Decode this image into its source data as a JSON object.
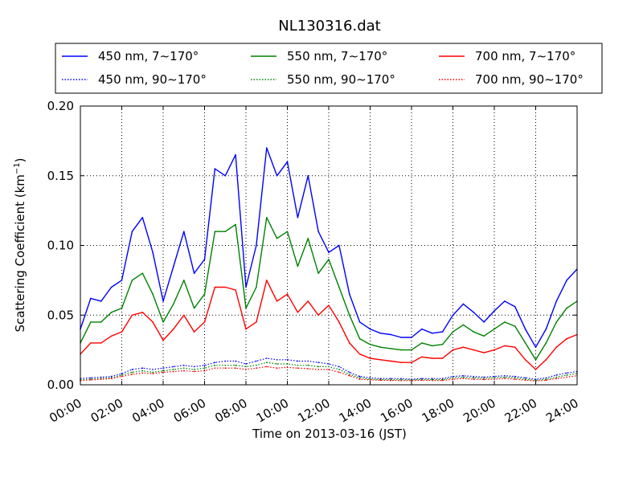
{
  "chart_data": {
    "type": "line",
    "title": "NL130316.dat",
    "xlabel": "Time on 2013-03-16 (JST)",
    "ylabel": "Scattering Coefficient (km",
    "ylabel_sup": "−1",
    "ylabel_end": ")",
    "xlim": [
      "00:00",
      "24:00"
    ],
    "ylim": [
      0.0,
      0.2
    ],
    "grid": true,
    "legend_position": "top",
    "x_tick_labels": [
      "00:00",
      "02:00",
      "04:00",
      "06:00",
      "08:00",
      "10:00",
      "12:00",
      "14:00",
      "16:00",
      "18:00",
      "20:00",
      "22:00",
      "24:00"
    ],
    "y_tick_labels": [
      "0.00",
      "0.05",
      "0.10",
      "0.15",
      "0.20"
    ],
    "x_hours": [
      0,
      0.5,
      1,
      1.5,
      2,
      2.5,
      3,
      3.5,
      4,
      4.5,
      5,
      5.5,
      6,
      6.5,
      7,
      7.5,
      8,
      8.5,
      9,
      9.5,
      10,
      10.5,
      11,
      11.5,
      12,
      12.5,
      13,
      13.5,
      14,
      14.5,
      15,
      15.5,
      16,
      16.5,
      17,
      17.5,
      18,
      18.5,
      19,
      19.5,
      20,
      20.5,
      21,
      21.5,
      22,
      22.5,
      23,
      23.5,
      24
    ],
    "series": [
      {
        "name": "450 nm, 7∼170°",
        "color": "#0000ff",
        "style": "solid",
        "values": [
          0.04,
          0.062,
          0.06,
          0.07,
          0.075,
          0.11,
          0.12,
          0.095,
          0.06,
          0.085,
          0.11,
          0.08,
          0.09,
          0.155,
          0.15,
          0.165,
          0.07,
          0.1,
          0.17,
          0.15,
          0.16,
          0.12,
          0.15,
          0.11,
          0.095,
          0.1,
          0.065,
          0.045,
          0.04,
          0.037,
          0.036,
          0.034,
          0.034,
          0.04,
          0.037,
          0.038,
          0.05,
          0.058,
          0.052,
          0.045,
          0.053,
          0.06,
          0.056,
          0.04,
          0.027,
          0.04,
          0.06,
          0.075,
          0.083
        ]
      },
      {
        "name": "450 nm, 90∼170°",
        "color": "#0000ff",
        "style": "dotted",
        "values": [
          0.0045,
          0.005,
          0.0055,
          0.006,
          0.008,
          0.011,
          0.012,
          0.011,
          0.012,
          0.013,
          0.014,
          0.013,
          0.014,
          0.016,
          0.017,
          0.017,
          0.015,
          0.017,
          0.019,
          0.018,
          0.018,
          0.017,
          0.017,
          0.016,
          0.015,
          0.013,
          0.009,
          0.006,
          0.005,
          0.0045,
          0.0045,
          0.0045,
          0.004,
          0.0045,
          0.0045,
          0.0045,
          0.006,
          0.0065,
          0.006,
          0.0055,
          0.006,
          0.0065,
          0.006,
          0.005,
          0.004,
          0.005,
          0.007,
          0.0085,
          0.0095
        ]
      },
      {
        "name": "550 nm, 7∼170°",
        "color": "#008000",
        "style": "solid",
        "values": [
          0.03,
          0.045,
          0.045,
          0.052,
          0.055,
          0.075,
          0.08,
          0.065,
          0.045,
          0.058,
          0.075,
          0.055,
          0.065,
          0.11,
          0.11,
          0.115,
          0.055,
          0.07,
          0.12,
          0.105,
          0.11,
          0.085,
          0.105,
          0.08,
          0.09,
          0.07,
          0.05,
          0.033,
          0.029,
          0.027,
          0.026,
          0.025,
          0.025,
          0.03,
          0.028,
          0.029,
          0.038,
          0.043,
          0.038,
          0.035,
          0.04,
          0.045,
          0.042,
          0.03,
          0.018,
          0.03,
          0.045,
          0.055,
          0.06
        ]
      },
      {
        "name": "550 nm, 90∼170°",
        "color": "#008000",
        "style": "dotted",
        "values": [
          0.0035,
          0.004,
          0.0045,
          0.005,
          0.007,
          0.009,
          0.01,
          0.009,
          0.01,
          0.011,
          0.012,
          0.011,
          0.012,
          0.014,
          0.014,
          0.014,
          0.013,
          0.014,
          0.016,
          0.015,
          0.015,
          0.014,
          0.014,
          0.013,
          0.013,
          0.011,
          0.0075,
          0.005,
          0.004,
          0.0038,
          0.0037,
          0.0036,
          0.0035,
          0.0038,
          0.0037,
          0.0037,
          0.005,
          0.0055,
          0.005,
          0.0045,
          0.005,
          0.0055,
          0.005,
          0.004,
          0.0032,
          0.004,
          0.0055,
          0.007,
          0.008
        ]
      },
      {
        "name": "700 nm, 7∼170°",
        "color": "#ff0000",
        "style": "solid",
        "values": [
          0.022,
          0.03,
          0.03,
          0.035,
          0.038,
          0.05,
          0.052,
          0.045,
          0.032,
          0.04,
          0.05,
          0.038,
          0.045,
          0.07,
          0.07,
          0.068,
          0.04,
          0.045,
          0.075,
          0.06,
          0.065,
          0.052,
          0.06,
          0.05,
          0.057,
          0.045,
          0.03,
          0.022,
          0.019,
          0.018,
          0.017,
          0.016,
          0.016,
          0.02,
          0.019,
          0.019,
          0.025,
          0.027,
          0.025,
          0.023,
          0.025,
          0.028,
          0.027,
          0.018,
          0.011,
          0.018,
          0.027,
          0.033,
          0.036
        ]
      },
      {
        "name": "700 nm, 90∼170°",
        "color": "#ff0000",
        "style": "dotted",
        "values": [
          0.003,
          0.0035,
          0.004,
          0.0045,
          0.006,
          0.0075,
          0.0085,
          0.008,
          0.009,
          0.0095,
          0.01,
          0.0095,
          0.01,
          0.012,
          0.012,
          0.012,
          0.011,
          0.012,
          0.013,
          0.012,
          0.0125,
          0.012,
          0.0115,
          0.011,
          0.011,
          0.009,
          0.0065,
          0.004,
          0.0035,
          0.0032,
          0.0031,
          0.003,
          0.003,
          0.0032,
          0.0031,
          0.0031,
          0.004,
          0.0045,
          0.004,
          0.0038,
          0.004,
          0.0045,
          0.004,
          0.0033,
          0.0027,
          0.0033,
          0.0045,
          0.0055,
          0.0065
        ]
      }
    ]
  }
}
